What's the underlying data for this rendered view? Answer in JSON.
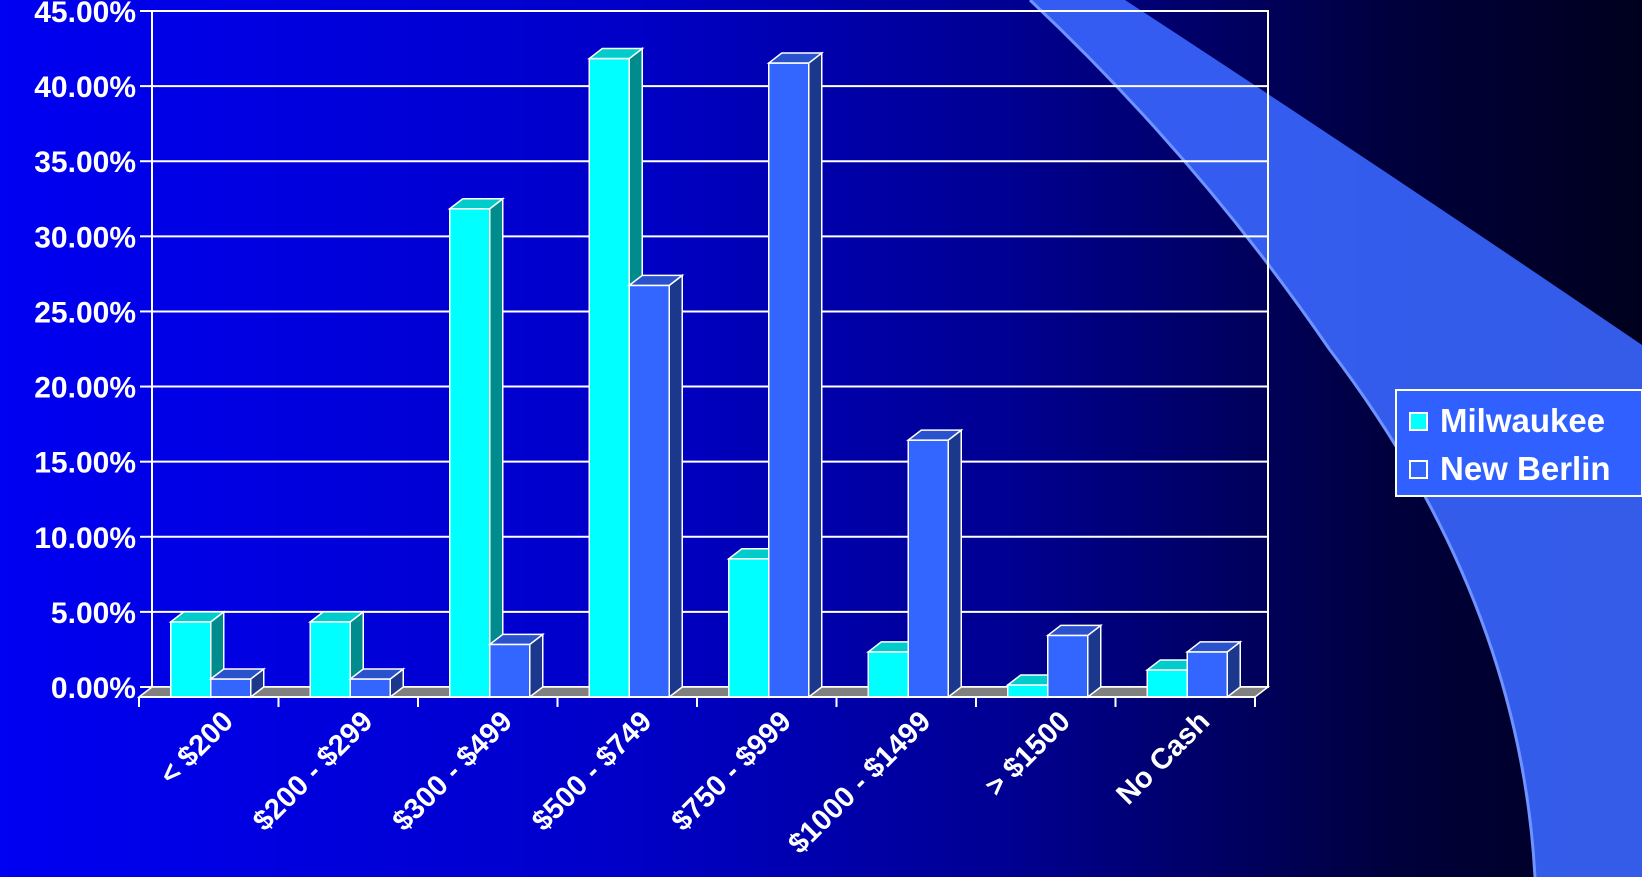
{
  "chart_data": {
    "type": "bar",
    "style": "3d-clustered-column",
    "categories": [
      "< $200",
      "$200 - $299",
      "$300 - $499",
      "$500 - $749",
      "$750 - $999",
      "$1000 - $1499",
      "> $1500",
      "No Cash"
    ],
    "series": [
      {
        "name": "Milwaukee",
        "color": "#00ffff",
        "values": [
          5.0,
          5.0,
          32.5,
          42.5,
          9.2,
          3.0,
          0.8,
          1.8
        ]
      },
      {
        "name": "New Berlin",
        "color": "#3366ff",
        "values": [
          1.2,
          1.2,
          3.5,
          27.4,
          42.2,
          17.1,
          4.1,
          3.0
        ]
      }
    ],
    "y_ticks": [
      "0.00%",
      "5.00%",
      "10.00%",
      "15.00%",
      "20.00%",
      "25.00%",
      "30.00%",
      "35.00%",
      "40.00%",
      "45.00%"
    ],
    "ylim": [
      0,
      45
    ],
    "grid": true,
    "legend_position": "right"
  },
  "colors": {
    "background_left": "#0000f2",
    "background_right": "#00001e",
    "swoosh": "#3366ff",
    "gridline": "#ffffff",
    "floor": "#808080"
  }
}
